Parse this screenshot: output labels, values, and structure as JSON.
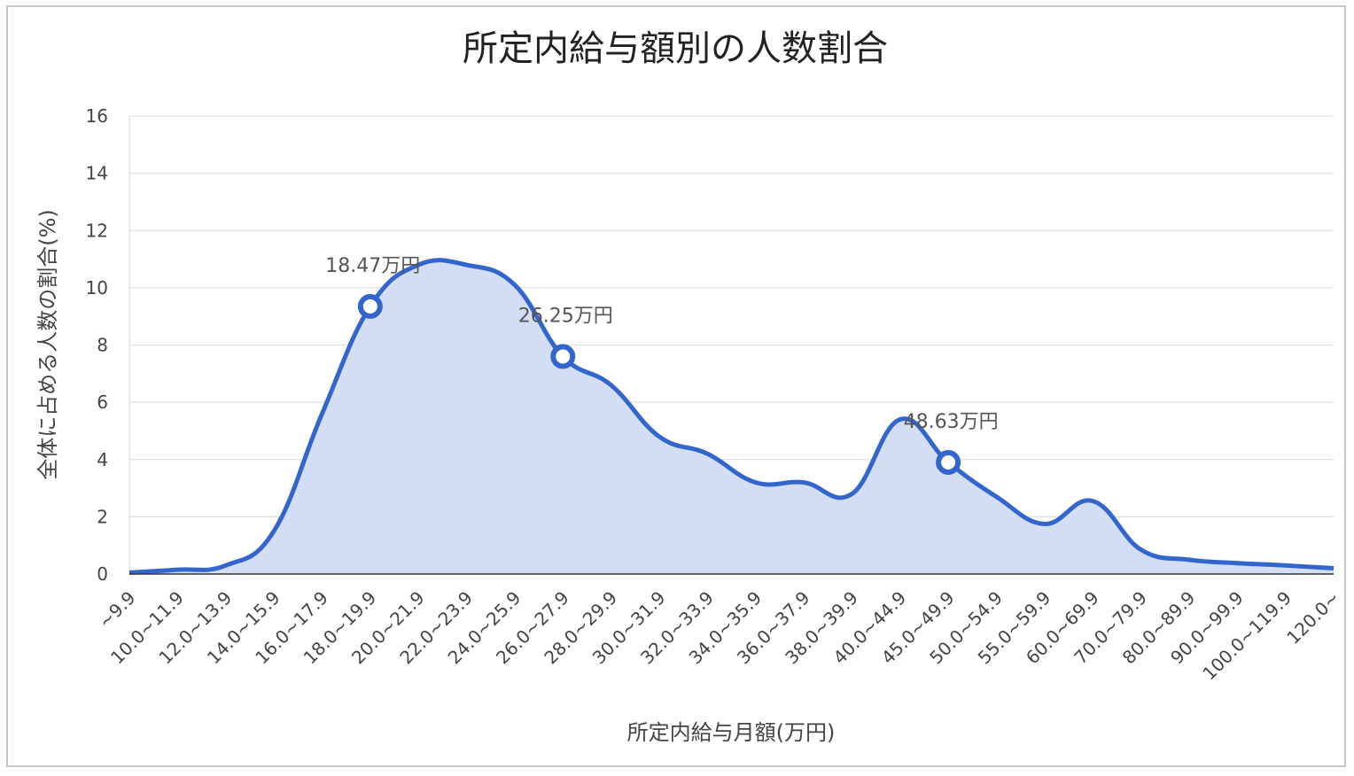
{
  "chart_data": {
    "type": "area",
    "title": "所定内給与額別の人数割合",
    "xlabel": "所定内給与月額(万円)",
    "ylabel": "全体に占める人数の割合(%)",
    "ylim": [
      0,
      16
    ],
    "yticks": [
      "0",
      "2",
      "4",
      "6",
      "8",
      "10",
      "12",
      "14",
      "16"
    ],
    "grid": true,
    "legend": "none",
    "categories": [
      "~9.9",
      "10.0~11.9",
      "12.0~13.9",
      "14.0~15.9",
      "16.0~17.9",
      "18.0~19.9",
      "20.0~21.9",
      "22.0~23.9",
      "24.0~25.9",
      "26.0~27.9",
      "28.0~29.9",
      "30.0~31.9",
      "32.0~33.9",
      "34.0~35.9",
      "36.0~37.9",
      "38.0~39.9",
      "40.0~44.9",
      "45.0~49.9",
      "50.0~54.9",
      "55.0~59.9",
      "60.0~69.9",
      "70.0~79.9",
      "80.0~89.9",
      "90.0~99.9",
      "100.0~119.9",
      "120.0~"
    ],
    "values": [
      0.05,
      0.15,
      0.3,
      1.5,
      5.6,
      9.35,
      10.8,
      10.8,
      10.1,
      7.6,
      6.6,
      4.8,
      4.2,
      3.2,
      3.2,
      2.8,
      5.4,
      3.9,
      2.7,
      1.75,
      2.55,
      0.85,
      0.5,
      0.38,
      0.3,
      0.2
    ],
    "color": "#3366cc",
    "fill_color": "#d3def5",
    "annotations": [
      {
        "label": "18.47万円",
        "category_index": 5
      },
      {
        "label": "26.25万円",
        "category_index": 9
      },
      {
        "label": "48.63万円",
        "category_index": 17
      }
    ]
  }
}
